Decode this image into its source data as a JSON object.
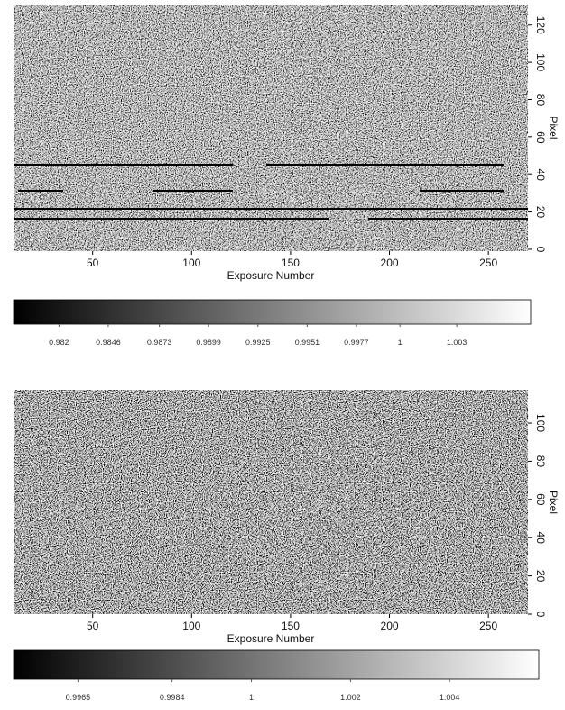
{
  "chart_data": [
    {
      "type": "heatmap",
      "xlabel": "Exposure Number",
      "ylabel": "Pixel",
      "xlim": [
        10,
        270
      ],
      "xticks": [
        50,
        100,
        150,
        200,
        250
      ],
      "ylim": [
        -1,
        131
      ],
      "yticks": [
        0,
        20,
        40,
        60,
        80,
        100,
        120
      ],
      "clim": [
        0.9796,
        1.0069
      ],
      "colorbar_ticks": [
        0.982,
        0.9846,
        0.9873,
        0.9899,
        0.9925,
        0.9951,
        0.9977,
        1,
        1.003
      ]
    },
    {
      "type": "heatmap",
      "xlabel": "Exposure Number",
      "ylabel": "Pixel",
      "xlim": [
        10,
        270
      ],
      "xticks": [
        50,
        100,
        150,
        200,
        250
      ],
      "ylim": [
        0,
        117
      ],
      "yticks": [
        0,
        20,
        40,
        60,
        80,
        100
      ],
      "clim": [
        0.9952,
        1.0058
      ],
      "colorbar_ticks": [
        0.9965,
        0.9984,
        1,
        1.002,
        1.004
      ]
    }
  ]
}
